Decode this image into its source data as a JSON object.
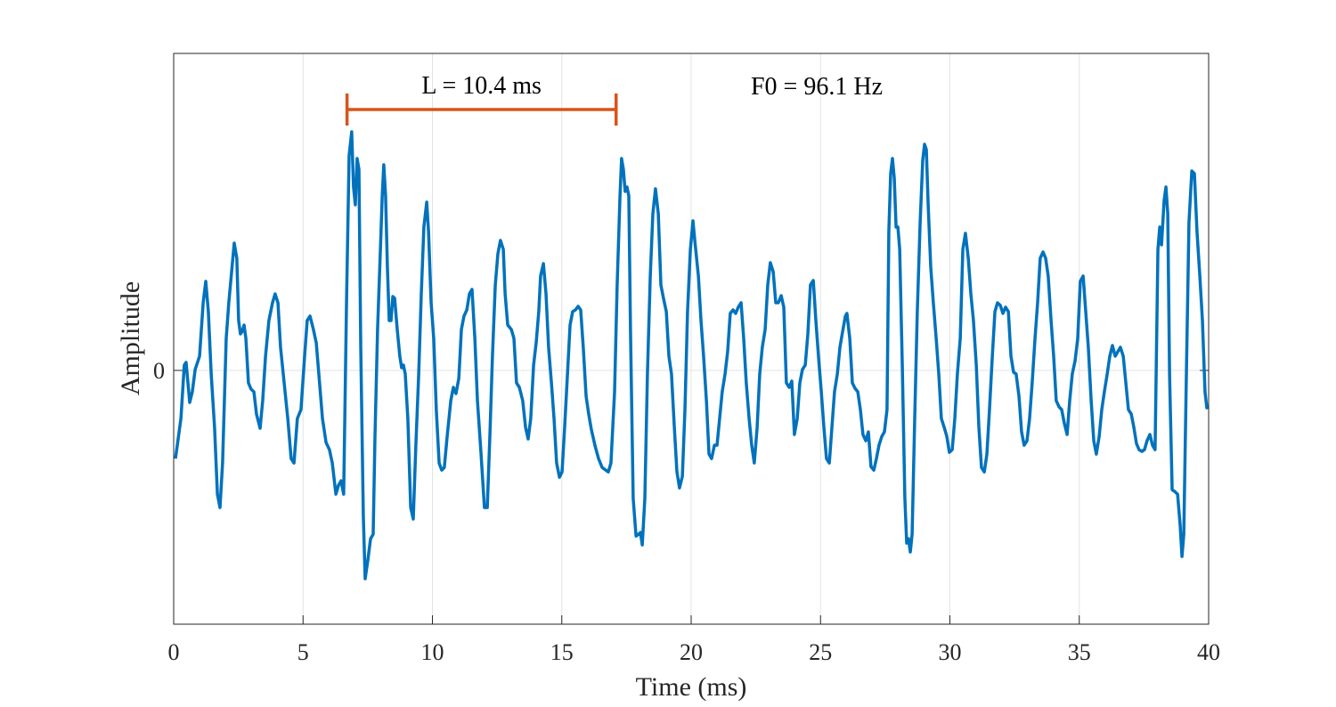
{
  "chart_data": {
    "type": "line",
    "xlabel": "Time (ms)",
    "ylabel": "Amplitude",
    "xlim": [
      0,
      40
    ],
    "xticks": [
      0,
      5,
      10,
      15,
      20,
      25,
      30,
      35,
      40
    ],
    "ylim": [
      -285,
      356
    ],
    "yticks": [
      0
    ],
    "grid": true,
    "color": "#0072bd",
    "x": [
      0.07,
      0.28,
      0.41,
      0.48,
      0.62,
      0.72,
      0.83,
      1.0,
      1.14,
      1.24,
      1.34,
      1.45,
      1.58,
      1.69,
      1.79,
      1.89,
      2.03,
      2.13,
      2.24,
      2.34,
      2.44,
      2.51,
      2.58,
      2.65,
      2.72,
      2.79,
      2.89,
      2.99,
      3.1,
      3.2,
      3.34,
      3.44,
      3.55,
      3.68,
      3.82,
      3.92,
      4.03,
      4.13,
      4.27,
      4.41,
      4.54,
      4.65,
      4.78,
      4.92,
      5.06,
      5.16,
      5.27,
      5.4,
      5.51,
      5.61,
      5.75,
      5.89,
      6.02,
      6.13,
      6.27,
      6.37,
      6.47,
      6.57,
      6.68,
      6.78,
      6.88,
      6.95,
      7.02,
      7.09,
      7.16,
      7.23,
      7.33,
      7.4,
      7.5,
      7.61,
      7.71,
      7.78,
      7.88,
      7.99,
      8.06,
      8.12,
      8.19,
      8.26,
      8.33,
      8.4,
      8.47,
      8.54,
      8.64,
      8.74,
      8.81,
      8.88,
      8.95,
      9.05,
      9.16,
      9.26,
      9.36,
      9.47,
      9.57,
      9.67,
      9.78,
      9.85,
      9.95,
      10.05,
      10.15,
      10.26,
      10.36,
      10.46,
      10.57,
      10.71,
      10.81,
      10.91,
      11.02,
      11.12,
      11.22,
      11.33,
      11.43,
      11.53,
      11.64,
      11.74,
      11.88,
      12.01,
      12.12,
      12.22,
      12.32,
      12.43,
      12.53,
      12.63,
      12.74,
      12.81,
      12.91,
      13.05,
      13.15,
      13.25,
      13.36,
      13.49,
      13.6,
      13.7,
      13.8,
      13.91,
      14.01,
      14.11,
      14.18,
      14.29,
      14.39,
      14.49,
      14.6,
      14.7,
      14.8,
      14.91,
      15.01,
      15.11,
      15.22,
      15.32,
      15.42,
      15.53,
      15.63,
      15.73,
      15.83,
      15.94,
      16.04,
      16.14,
      16.28,
      16.42,
      16.56,
      16.7,
      16.8,
      16.9,
      17.04,
      17.14,
      17.25,
      17.31,
      17.38,
      17.45,
      17.52,
      17.59,
      17.66,
      17.76,
      17.87,
      17.97,
      18.04,
      18.11,
      18.21,
      18.31,
      18.42,
      18.52,
      18.62,
      18.73,
      18.83,
      18.93,
      19.04,
      19.14,
      19.24,
      19.35,
      19.45,
      19.55,
      19.66,
      19.76,
      19.86,
      19.97,
      20.07,
      20.14,
      20.28,
      20.38,
      20.48,
      20.59,
      20.69,
      20.79,
      20.9,
      21.0,
      21.1,
      21.2,
      21.31,
      21.41,
      21.51,
      21.62,
      21.72,
      21.82,
      21.93,
      22.03,
      22.13,
      22.24,
      22.34,
      22.44,
      22.55,
      22.65,
      22.75,
      22.86,
      22.96,
      23.06,
      23.17,
      23.27,
      23.37,
      23.48,
      23.58,
      23.68,
      23.79,
      23.89,
      23.99,
      24.1,
      24.2,
      24.3,
      24.41,
      24.51,
      24.61,
      24.72,
      24.82,
      24.92,
      25.03,
      25.13,
      25.23,
      25.34,
      25.44,
      25.54,
      25.65,
      25.75,
      25.85,
      25.96,
      26.02,
      26.13,
      26.23,
      26.33,
      26.44,
      26.54,
      26.64,
      26.75,
      26.85,
      26.95,
      27.06,
      27.16,
      27.26,
      27.37,
      27.47,
      27.57,
      27.64,
      27.71,
      27.78,
      27.85,
      27.92,
      27.99,
      28.06,
      28.16,
      28.26,
      28.33,
      28.4,
      28.47,
      28.54,
      28.64,
      28.74,
      28.85,
      28.95,
      29.02,
      29.09,
      29.16,
      29.26,
      29.36,
      29.47,
      29.57,
      29.67,
      29.78,
      29.88,
      29.98,
      30.09,
      30.19,
      30.29,
      30.4,
      30.5,
      30.6,
      30.71,
      30.81,
      30.91,
      31.02,
      31.12,
      31.22,
      31.33,
      31.43,
      31.53,
      31.64,
      31.74,
      31.84,
      31.95,
      32.05,
      32.15,
      32.26,
      32.36,
      32.46,
      32.56,
      32.67,
      32.77,
      32.87,
      32.98,
      33.08,
      33.18,
      33.29,
      33.39,
      33.49,
      33.6,
      33.7,
      33.8,
      33.91,
      34.01,
      34.11,
      34.22,
      34.32,
      34.42,
      34.53,
      34.63,
      34.73,
      34.84,
      34.94,
      35.04,
      35.15,
      35.25,
      35.35,
      35.46,
      35.56,
      35.66,
      35.77,
      35.87,
      35.97,
      36.08,
      36.18,
      36.28,
      36.39,
      36.49,
      36.59,
      36.7,
      36.8,
      36.9,
      37.01,
      37.11,
      37.21,
      37.31,
      37.42,
      37.52,
      37.62,
      37.73,
      37.83,
      37.93,
      38.04,
      38.11,
      38.18,
      38.28,
      38.35,
      38.42,
      38.49,
      38.59,
      38.69,
      38.8,
      38.9,
      38.97,
      39.04,
      39.14,
      39.24,
      39.35,
      39.45,
      39.55,
      39.66,
      39.76,
      39.86,
      39.93,
      40.0
    ],
    "values": [
      -99,
      -54,
      6,
      9,
      -36,
      -24,
      1,
      16,
      76,
      100,
      66,
      -4,
      -64,
      -139,
      -154,
      -104,
      36,
      76,
      111,
      143,
      126,
      56,
      41,
      44,
      51,
      36,
      -14,
      -21,
      -24,
      -49,
      -65,
      -34,
      16,
      56,
      76,
      86,
      76,
      26,
      -14,
      -54,
      -99,
      -104,
      -54,
      -44,
      16,
      56,
      61,
      46,
      31,
      -4,
      -54,
      -81,
      -89,
      -104,
      -139,
      -129,
      -124,
      -139,
      76,
      241,
      268,
      206,
      186,
      238,
      226,
      26,
      -164,
      -234,
      -214,
      -189,
      -184,
      -74,
      46,
      136,
      196,
      231,
      196,
      116,
      56,
      56,
      83,
      81,
      46,
      16,
      3,
      6,
      -4,
      -54,
      -154,
      -167,
      -84,
      -4,
      86,
      161,
      189,
      156,
      76,
      36,
      -44,
      -104,
      -112,
      -109,
      -74,
      -34,
      -19,
      -26,
      -9,
      46,
      61,
      68,
      86,
      91,
      36,
      -34,
      -94,
      -154,
      -154,
      -74,
      16,
      96,
      131,
      146,
      136,
      86,
      51,
      46,
      36,
      -14,
      -19,
      -34,
      -64,
      -77,
      -54,
      6,
      31,
      66,
      106,
      120,
      86,
      26,
      -14,
      -54,
      -104,
      -120,
      -114,
      -64,
      -4,
      51,
      66,
      68,
      72,
      68,
      26,
      -29,
      -49,
      -66,
      -84,
      -99,
      -109,
      -112,
      -114,
      -104,
      -24,
      96,
      196,
      238,
      226,
      201,
      206,
      196,
      36,
      -144,
      -186,
      -184,
      -182,
      -196,
      -144,
      -4,
      106,
      176,
      204,
      176,
      96,
      81,
      66,
      16,
      -4,
      -64,
      -114,
      -132,
      -119,
      -44,
      66,
      136,
      168,
      146,
      106,
      56,
      16,
      -34,
      -94,
      -99,
      -84,
      -84,
      -54,
      -24,
      -4,
      21,
      64,
      68,
      64,
      71,
      76,
      36,
      -14,
      -54,
      -84,
      -104,
      -64,
      -4,
      26,
      46,
      96,
      121,
      111,
      76,
      76,
      84,
      71,
      -14,
      -19,
      -12,
      -72,
      -54,
      -14,
      1,
      6,
      41,
      96,
      101,
      56,
      16,
      -24,
      -64,
      -99,
      -104,
      -64,
      -24,
      -4,
      26,
      43,
      61,
      64,
      36,
      -14,
      -20,
      -24,
      -44,
      -72,
      -79,
      -69,
      -108,
      -112,
      -99,
      -84,
      -74,
      -69,
      -44,
      156,
      221,
      238,
      216,
      161,
      161,
      136,
      6,
      -144,
      -194,
      -189,
      -204,
      -184,
      -54,
      66,
      166,
      236,
      254,
      248,
      186,
      116,
      76,
      36,
      -4,
      -54,
      -64,
      -74,
      -92,
      -89,
      -54,
      -4,
      36,
      136,
      154,
      126,
      86,
      56,
      6,
      -64,
      -109,
      -114,
      -94,
      -44,
      16,
      66,
      76,
      73,
      64,
      71,
      66,
      16,
      -2,
      -4,
      -29,
      -69,
      -84,
      -79,
      -54,
      -14,
      36,
      76,
      126,
      133,
      126,
      106,
      56,
      16,
      -34,
      -41,
      -44,
      -59,
      -72,
      -34,
      -4,
      11,
      36,
      100,
      106,
      66,
      26,
      -34,
      -79,
      -94,
      -74,
      -44,
      -24,
      -4,
      16,
      28,
      16,
      21,
      26,
      16,
      -14,
      -44,
      -49,
      -64,
      -82,
      -89,
      -91,
      -89,
      -79,
      -72,
      -84,
      -89,
      136,
      161,
      141,
      191,
      206,
      176,
      -4,
      -134,
      -136,
      -139,
      -174,
      -209,
      -184,
      -4,
      166,
      224,
      221,
      156,
      106,
      56,
      -24,
      -42,
      -41
    ],
    "bracket": {
      "label": "L = 10.4 ms",
      "x": [
        6.7,
        17.1
      ],
      "y": 293,
      "color": "#d95319"
    },
    "note": "F0 = 96.1 Hz"
  }
}
